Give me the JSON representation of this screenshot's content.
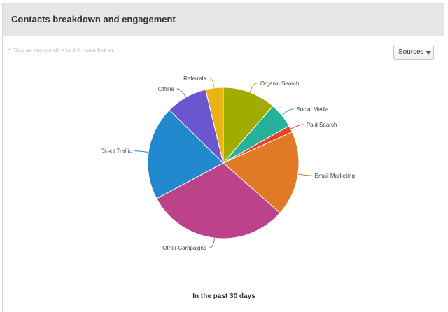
{
  "panel": {
    "title": "Contacts breakdown and engagement",
    "hint": "* Click on any pie slice to drill down further",
    "dropdown": {
      "selected": "Sources",
      "icon": "chevron-down-icon"
    },
    "footer": "In the past 30 days"
  },
  "chart_data": {
    "type": "pie",
    "categories": [
      "Organic Search",
      "Social Media",
      "Paid Search",
      "Email Marketing",
      "Other Campaigns",
      "Direct Traffic",
      "Offline",
      "Referrals"
    ],
    "values": [
      11.2,
      5.3,
      1.4,
      17.9,
      30.1,
      19.8,
      8.7,
      3.7
    ],
    "colors": [
      "#a0ad00",
      "#26b19b",
      "#e2432b",
      "#e07a24",
      "#bc4389",
      "#2389cf",
      "#6b56cf",
      "#e8b315"
    ],
    "start_angle": "top",
    "direction": "clockwise"
  }
}
